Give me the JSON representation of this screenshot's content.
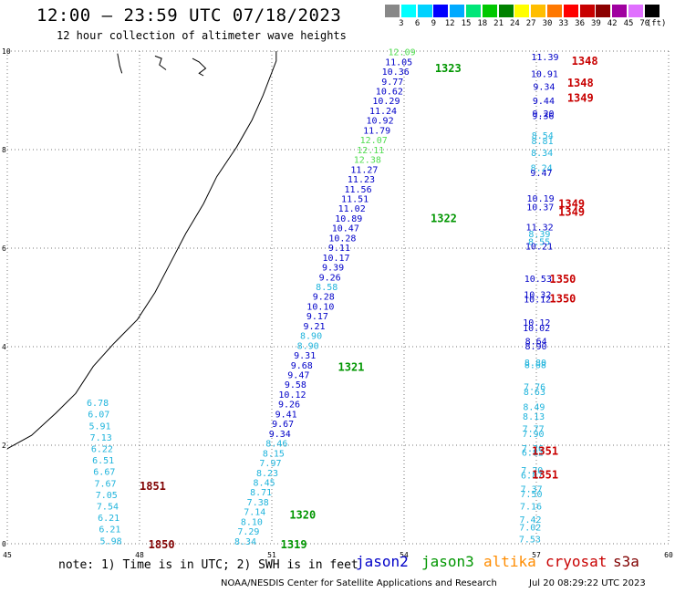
{
  "header": {
    "title": "12:00 – 23:59 UTC 07/18/2023",
    "subtitle": "12 hour collection of altimeter wave heights"
  },
  "colorbar": {
    "unit": "(ft)",
    "ticks": [
      "3",
      "6",
      "9",
      "12",
      "15",
      "18",
      "21",
      "24",
      "27",
      "30",
      "33",
      "36",
      "39",
      "42",
      "45",
      "70"
    ],
    "colors": [
      "#888888",
      "#00ffff",
      "#00d2ff",
      "#0000ff",
      "#00aaff",
      "#00e678",
      "#00c800",
      "#008200",
      "#ffff00",
      "#ffbe00",
      "#ff7800",
      "#ff0000",
      "#c80000",
      "#8b0000",
      "#a000a0",
      "#e070ff",
      "#000000"
    ]
  },
  "map": {
    "lon_range": [
      45,
      60
    ],
    "lat_range": [
      0,
      10
    ],
    "lon_ticks": [
      "45",
      "48",
      "51",
      "54",
      "57",
      "60"
    ],
    "lat_ticks": [
      "0",
      "2",
      "4",
      "6",
      "8",
      "10"
    ],
    "grid": "dotted"
  },
  "satellite_colors": {
    "jason2": "#0000c8",
    "jason3": "#009600",
    "altika": "#ff8c00",
    "cryosat": "#c80000",
    "s3a": "#800000",
    "low": "#20b4dc",
    "green_light": "#50dc50"
  },
  "track_labels": [
    {
      "text": "1323",
      "lon": 54.7,
      "lat": 9.65,
      "sat": "jason3"
    },
    {
      "text": "1322",
      "lon": 54.6,
      "lat": 6.6,
      "sat": "jason3"
    },
    {
      "text": "1321",
      "lon": 52.5,
      "lat": 3.58,
      "sat": "jason3"
    },
    {
      "text": "1320",
      "lon": 51.4,
      "lat": 0.58,
      "sat": "jason3"
    },
    {
      "text": "1319",
      "lon": 51.2,
      "lat": -0.02,
      "sat": "jason3"
    },
    {
      "text": "1348",
      "lon": 57.8,
      "lat": 9.8,
      "sat": "cryosat"
    },
    {
      "text": "1348",
      "lon": 57.7,
      "lat": 9.35,
      "sat": "cryosat"
    },
    {
      "text": "1349",
      "lon": 57.7,
      "lat": 9.05,
      "sat": "cryosat"
    },
    {
      "text": "1349",
      "lon": 57.5,
      "lat": 6.9,
      "sat": "cryosat"
    },
    {
      "text": "1349",
      "lon": 57.5,
      "lat": 6.73,
      "sat": "cryosat"
    },
    {
      "text": "1350",
      "lon": 57.3,
      "lat": 5.37,
      "sat": "cryosat"
    },
    {
      "text": "1350",
      "lon": 57.3,
      "lat": 4.97,
      "sat": "cryosat"
    },
    {
      "text": "1351",
      "lon": 56.9,
      "lat": 1.88,
      "sat": "cryosat"
    },
    {
      "text": "1351",
      "lon": 56.9,
      "lat": 1.4,
      "sat": "cryosat"
    },
    {
      "text": "1851",
      "lon": 48.0,
      "lat": 1.17,
      "sat": "s3a"
    },
    {
      "text": "1850",
      "lon": 48.2,
      "lat": -0.02,
      "sat": "s3a"
    }
  ],
  "jason_track": [
    {
      "v": "12.09",
      "c": "green_light"
    },
    {
      "v": "11.05",
      "c": "jason2"
    },
    {
      "v": "10.36",
      "c": "jason2"
    },
    {
      "v": "9.77",
      "c": "jason2"
    },
    {
      "v": "10.62",
      "c": "jason2"
    },
    {
      "v": "10.29",
      "c": "jason2"
    },
    {
      "v": "11.24",
      "c": "jason2"
    },
    {
      "v": "10.92",
      "c": "jason2"
    },
    {
      "v": "11.79",
      "c": "jason2"
    },
    {
      "v": "12.07",
      "c": "green_light"
    },
    {
      "v": "12.11",
      "c": "green_light"
    },
    {
      "v": "12.38",
      "c": "green_light"
    },
    {
      "v": "11.27",
      "c": "jason2"
    },
    {
      "v": "11.23",
      "c": "jason2"
    },
    {
      "v": "11.56",
      "c": "jason2"
    },
    {
      "v": "11.51",
      "c": "jason2"
    },
    {
      "v": "11.02",
      "c": "jason2"
    },
    {
      "v": "10.89",
      "c": "jason2"
    },
    {
      "v": "10.47",
      "c": "jason2"
    },
    {
      "v": "10.28",
      "c": "jason2"
    },
    {
      "v": "9.11",
      "c": "jason2"
    },
    {
      "v": "10.17",
      "c": "jason2"
    },
    {
      "v": "9.39",
      "c": "jason2"
    },
    {
      "v": "9.26",
      "c": "jason2"
    },
    {
      "v": "8.58",
      "c": "low"
    },
    {
      "v": "9.28",
      "c": "jason2"
    },
    {
      "v": "10.10",
      "c": "jason2"
    },
    {
      "v": "9.17",
      "c": "jason2"
    },
    {
      "v": "9.21",
      "c": "jason2"
    },
    {
      "v": "8.90",
      "c": "low"
    },
    {
      "v": "8.90",
      "c": "low"
    },
    {
      "v": "9.31",
      "c": "jason2"
    },
    {
      "v": "9.68",
      "c": "jason2"
    },
    {
      "v": "9.47",
      "c": "jason2"
    },
    {
      "v": "9.58",
      "c": "jason2"
    },
    {
      "v": "10.12",
      "c": "jason2"
    },
    {
      "v": "9.26",
      "c": "jason2"
    },
    {
      "v": "9.41",
      "c": "jason2"
    },
    {
      "v": "9.67",
      "c": "jason2"
    },
    {
      "v": "9.34",
      "c": "jason2"
    },
    {
      "v": "8.46",
      "c": "low"
    },
    {
      "v": "8.15",
      "c": "low"
    },
    {
      "v": "7.97",
      "c": "low"
    },
    {
      "v": "8.23",
      "c": "low"
    },
    {
      "v": "8.45",
      "c": "low"
    },
    {
      "v": "8.71",
      "c": "low"
    },
    {
      "v": "7.38",
      "c": "low"
    },
    {
      "v": "7.14",
      "c": "low"
    },
    {
      "v": "8.10",
      "c": "low"
    },
    {
      "v": "7.29",
      "c": "low"
    },
    {
      "v": "8.34",
      "c": "low"
    }
  ],
  "s3a_track": [
    {
      "v": "6.78"
    },
    {
      "v": "6.07"
    },
    {
      "v": "5.91"
    },
    {
      "v": "7.13"
    },
    {
      "v": "6.22"
    },
    {
      "v": "6.51"
    },
    {
      "v": "6.67"
    },
    {
      "v": "7.67"
    },
    {
      "v": "7.05"
    },
    {
      "v": "7.54"
    },
    {
      "v": "6.21"
    },
    {
      "v": "6.21"
    },
    {
      "v": "5.98"
    }
  ],
  "cryosat_track": [
    {
      "v": "11.39",
      "c": "jason2",
      "lat": 9.87
    },
    {
      "v": "10.91",
      "c": "jason2",
      "lat": 9.53
    },
    {
      "v": "9.34",
      "c": "jason2",
      "lat": 9.27
    },
    {
      "v": "9.44",
      "c": "jason2",
      "lat": 8.98
    },
    {
      "v": "9.20",
      "c": "jason2",
      "lat": 8.72
    },
    {
      "v": "9.36",
      "c": "jason2",
      "lat": 8.68
    },
    {
      "v": "8.54",
      "c": "low",
      "lat": 8.28
    },
    {
      "v": "8.81",
      "c": "low",
      "lat": 8.17
    },
    {
      "v": "8.34",
      "c": "low",
      "lat": 7.93
    },
    {
      "v": "8.24",
      "c": "low",
      "lat": 7.62
    },
    {
      "v": "9.47",
      "c": "jason2",
      "lat": 7.52
    },
    {
      "v": "10.19",
      "c": "jason2",
      "lat": 7.0
    },
    {
      "v": "10.37",
      "c": "jason2",
      "lat": 6.82
    },
    {
      "v": "11.32",
      "c": "jason2",
      "lat": 6.42
    },
    {
      "v": "8.39",
      "c": "low",
      "lat": 6.28
    },
    {
      "v": "8.55",
      "c": "low",
      "lat": 6.12
    },
    {
      "v": "10.21",
      "c": "jason2",
      "lat": 6.03
    },
    {
      "v": "10.53",
      "c": "jason2",
      "lat": 5.37
    },
    {
      "v": "10.32",
      "c": "jason2",
      "lat": 5.05
    },
    {
      "v": "10.12",
      "c": "jason2",
      "lat": 4.95
    },
    {
      "v": "10.12",
      "c": "jason2",
      "lat": 4.48
    },
    {
      "v": "10.02",
      "c": "jason2",
      "lat": 4.37
    },
    {
      "v": "8.64",
      "c": "jason2",
      "lat": 4.1
    },
    {
      "v": "8.90",
      "c": "jason2",
      "lat": 4.0
    },
    {
      "v": "8.80",
      "c": "low",
      "lat": 3.67
    },
    {
      "v": "8.68",
      "c": "low",
      "lat": 3.62
    },
    {
      "v": "7.76",
      "c": "low",
      "lat": 3.18
    },
    {
      "v": "8.63",
      "c": "low",
      "lat": 3.07
    },
    {
      "v": "8.49",
      "c": "low",
      "lat": 2.77
    },
    {
      "v": "8.13",
      "c": "low",
      "lat": 2.57
    },
    {
      "v": "7.77",
      "c": "low",
      "lat": 2.32
    },
    {
      "v": "7.90",
      "c": "low",
      "lat": 2.22
    },
    {
      "v": "7.26",
      "c": "low",
      "lat": 1.93
    },
    {
      "v": "6.82",
      "c": "low",
      "lat": 1.84
    },
    {
      "v": "7.20",
      "c": "low",
      "lat": 1.48
    },
    {
      "v": "6.87",
      "c": "low",
      "lat": 1.38
    },
    {
      "v": "7.37",
      "c": "low",
      "lat": 1.1
    },
    {
      "v": "7.50",
      "c": "low",
      "lat": 1.0
    },
    {
      "v": "7.16",
      "c": "low",
      "lat": 0.75
    },
    {
      "v": "7.42",
      "c": "low",
      "lat": 0.48
    },
    {
      "v": "7.02",
      "c": "low",
      "lat": 0.32
    },
    {
      "v": "7.53",
      "c": "low",
      "lat": 0.08
    }
  ],
  "footer": {
    "note": "note: 1) Time is in UTC; 2) SWH is in feet",
    "legend": [
      {
        "name": "jason2",
        "color": "#0000c8"
      },
      {
        "name": "jason3",
        "color": "#009600"
      },
      {
        "name": "altika",
        "color": "#ff8c00"
      },
      {
        "name": "cryosat",
        "color": "#c80000"
      },
      {
        "name": "s3a",
        "color": "#800000"
      }
    ],
    "credit": "NOAA/NESDIS Center for Satellite Applications and Research",
    "timestamp": "Jul 20 08:29:22 UTC 2023"
  }
}
